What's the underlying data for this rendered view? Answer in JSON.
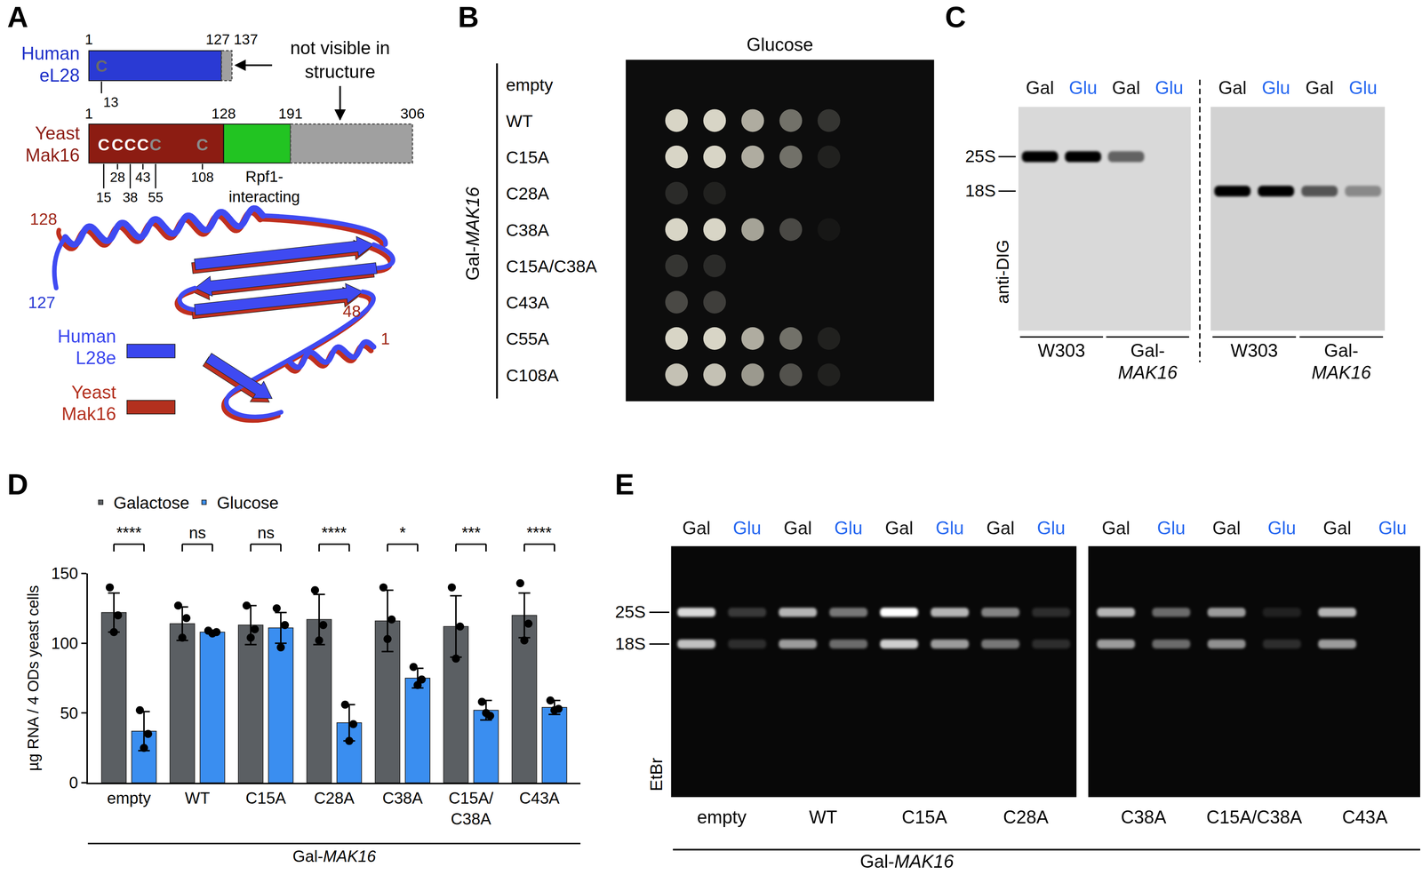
{
  "panels": {
    "A": {
      "label": "A",
      "human": {
        "name_lines": [
          "Human",
          "eL28"
        ],
        "start": 1,
        "structure_end": 127,
        "end": 137,
        "cysteine": "C",
        "cysteine_positions": [
          13
        ]
      },
      "yeast": {
        "name_lines": [
          "Yeast",
          "Mak16"
        ],
        "start": 1,
        "core_end": 128,
        "domain_end": 191,
        "end": 306,
        "cysteine": "C",
        "cysteine_positions": [
          15,
          28,
          38,
          43,
          55,
          108
        ],
        "domain_lines": [
          "Rpf1-",
          "interacting"
        ]
      },
      "note_lines": [
        "not visible in",
        "structure"
      ],
      "structure_labels": {
        "yeast_c_end": 128,
        "human_c_end": 127,
        "yeast_loop": 48,
        "yeast_n_end": 1
      },
      "legend": [
        {
          "lines": [
            "Human",
            "L28e"
          ],
          "color": "#3a46ee"
        },
        {
          "lines": [
            "Yeast",
            "Mak16"
          ],
          "color": "#b3301e"
        }
      ]
    },
    "B": {
      "label": "B",
      "title": "Glucose",
      "row_group": {
        "prefix": "Gal-",
        "gene": "MAK16"
      },
      "rows": [
        {
          "name": "empty",
          "growth": [
            0,
            0,
            0,
            0,
            0
          ]
        },
        {
          "name": "WT",
          "growth": [
            1,
            1,
            0.8,
            0.5,
            0.2
          ]
        },
        {
          "name": "C15A",
          "growth": [
            1,
            1,
            0.8,
            0.5,
            0.1
          ]
        },
        {
          "name": "C28A",
          "growth": [
            0.15,
            0.1,
            0,
            0,
            0
          ]
        },
        {
          "name": "C38A",
          "growth": [
            1,
            1,
            0.75,
            0.3,
            0.05
          ]
        },
        {
          "name": "C15A/C38A",
          "growth": [
            0.2,
            0.15,
            0,
            0,
            0
          ]
        },
        {
          "name": "C43A",
          "growth": [
            0.3,
            0.25,
            0,
            0,
            0
          ]
        },
        {
          "name": "C55A",
          "growth": [
            1,
            1,
            0.8,
            0.5,
            0.1
          ]
        },
        {
          "name": "C108A",
          "growth": [
            0.9,
            0.9,
            0.7,
            0.35,
            0.1
          ]
        }
      ]
    },
    "C": {
      "label": "C",
      "lanes": [
        "Gal",
        "Glu",
        "Gal",
        "Glu"
      ],
      "lane_colors": {
        "Gal": "#111111",
        "Glu": "#2466f0"
      },
      "markers": [
        "25S",
        "18S"
      ],
      "stain": "anti-DIG",
      "strains": [
        {
          "name": "W303"
        },
        {
          "prefix": "Gal-",
          "gene": "MAK16"
        }
      ],
      "blots": [
        {
          "band": "25S",
          "intensity": [
            1,
            1,
            0.55,
            0
          ]
        },
        {
          "band": "18S",
          "intensity": [
            1,
            1,
            0.6,
            0.35
          ]
        }
      ]
    },
    "E": {
      "label": "E",
      "lanes": [
        "Gal",
        "Glu"
      ],
      "lane_colors": {
        "Gal": "#111111",
        "Glu": "#2466f0"
      },
      "markers": [
        "25S",
        "18S"
      ],
      "stain": "EtBr",
      "group": {
        "prefix": "Gal-",
        "gene": "MAK16"
      },
      "gels": [
        [
          {
            "name": "empty",
            "bands": {
              "25S": [
                0.85,
                0.2
              ],
              "18S": [
                0.75,
                0.15
              ]
            }
          },
          {
            "name": "WT",
            "bands": {
              "25S": [
                0.7,
                0.45
              ],
              "18S": [
                0.6,
                0.4
              ]
            }
          },
          {
            "name": "C15A",
            "bands": {
              "25S": [
                1,
                0.7
              ],
              "18S": [
                0.8,
                0.6
              ]
            }
          },
          {
            "name": "C28A",
            "bands": {
              "25S": [
                0.5,
                0.15
              ],
              "18S": [
                0.45,
                0.15
              ]
            }
          }
        ],
        [
          {
            "name": "C38A",
            "bands": {
              "25S": [
                0.7,
                0.4
              ],
              "18S": [
                0.6,
                0.4
              ]
            }
          },
          {
            "name": "C15A/C38A",
            "bands": {
              "25S": [
                0.6,
                0.1
              ],
              "18S": [
                0.55,
                0.15
              ]
            }
          },
          {
            "name": "C43A",
            "bands": {
              "25S": [
                0.7,
                0
              ],
              "18S": [
                0.6,
                0
              ]
            }
          }
        ]
      ]
    }
  },
  "chart_data": {
    "panel": "D",
    "type": "bar",
    "categories": [
      "empty",
      "WT",
      "C15A",
      "C28A",
      "C38A",
      "C15A/C38A",
      "C43A"
    ],
    "series": [
      {
        "name": "Galactose",
        "color": "#5b5f63",
        "values": [
          122,
          114,
          113,
          117,
          116,
          112,
          120
        ],
        "errors": [
          14,
          12,
          14,
          18,
          22,
          22,
          16
        ],
        "points": [
          [
            140,
            120,
            108
          ],
          [
            127,
            118,
            104
          ],
          [
            127,
            110,
            104
          ],
          [
            138,
            113,
            102
          ],
          [
            140,
            117,
            103
          ],
          [
            140,
            112,
            89
          ],
          [
            143,
            114,
            102
          ]
        ]
      },
      {
        "name": "Glucose",
        "color": "#3a8ef0",
        "values": [
          37,
          108,
          111,
          43,
          75,
          52,
          54
        ],
        "errors": [
          14,
          1,
          11,
          13,
          7,
          7,
          5
        ],
        "points": [
          [
            52,
            35,
            25
          ],
          [
            109,
            108,
            107
          ],
          [
            125,
            113,
            97
          ],
          [
            56,
            42,
            30
          ],
          [
            83,
            74,
            70
          ],
          [
            58,
            48,
            50
          ],
          [
            59,
            53,
            52
          ]
        ]
      }
    ],
    "significance": [
      "****",
      "ns",
      "ns",
      "****",
      "*",
      "***",
      "****"
    ],
    "ylabel": "µg RNA / 4 ODs yeast cells",
    "ylim": [
      0,
      150
    ],
    "yticks": [
      0,
      50,
      100,
      150
    ],
    "group": {
      "prefix": "Gal-",
      "gene": "MAK16"
    },
    "legend": "top",
    "grid": false
  }
}
